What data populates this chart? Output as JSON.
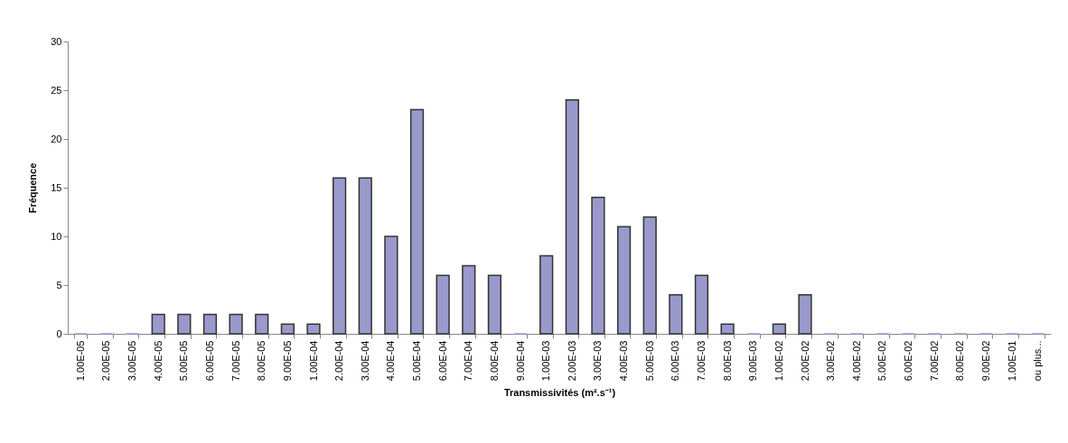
{
  "chart_data": {
    "type": "bar",
    "xlabel": "Transmissivités (m².s⁻¹)",
    "ylabel": "Fréquence",
    "categories": [
      "1.00E-05",
      "2.00E-05",
      "3.00E-05",
      "4.00E-05",
      "5.00E-05",
      "6.00E-05",
      "7.00E-05",
      "8.00E-05",
      "9.00E-05",
      "1.00E-04",
      "2.00E-04",
      "3.00E-04",
      "4.00E-04",
      "5.00E-04",
      "6.00E-04",
      "7.00E-04",
      "8.00E-04",
      "9.00E-04",
      "1.00E-03",
      "2.00E-03",
      "3.00E-03",
      "4.00E-03",
      "5.00E-03",
      "6.00E-03",
      "7.00E-03",
      "8.00E-03",
      "9.00E-03",
      "1.00E-02",
      "2.00E-02",
      "3.00E-02",
      "4.00E-02",
      "5.00E-02",
      "6.00E-02",
      "7.00E-02",
      "8.00E-02",
      "9.00E-02",
      "1.00E-01",
      "ou plus..."
    ],
    "values": [
      0,
      0,
      0,
      2,
      2,
      2,
      2,
      2,
      1,
      1,
      16,
      16,
      10,
      23,
      6,
      7,
      6,
      0,
      8,
      24,
      14,
      11,
      12,
      4,
      6,
      1,
      0,
      1,
      4,
      0,
      0,
      0,
      0,
      0,
      0,
      0,
      0,
      0
    ],
    "color": "#9999cc",
    "ylim": [
      0,
      30
    ],
    "yticks": [
      0,
      5,
      10,
      15,
      20,
      25,
      30
    ],
    "grid": false
  }
}
